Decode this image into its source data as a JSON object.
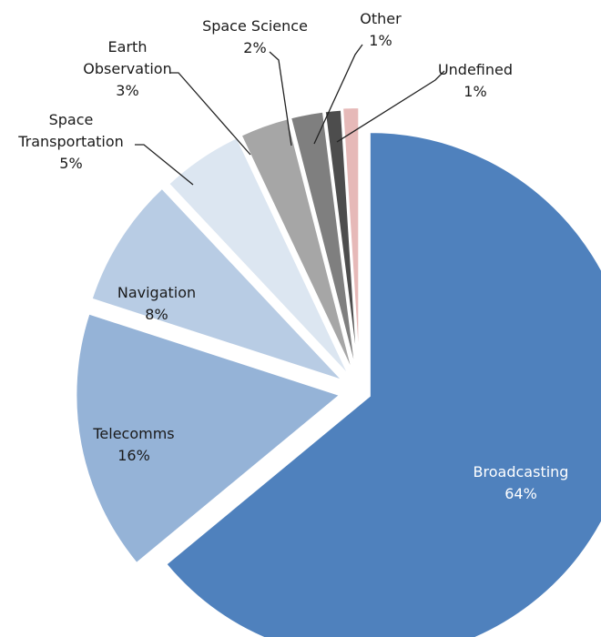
{
  "chart_data": {
    "type": "pie",
    "title": "",
    "start_angle_deg": 0,
    "direction": "clockwise",
    "slices": [
      {
        "category": "Broadcasting",
        "value": 64,
        "label": "64%",
        "color": "#4f81bd",
        "label_color": "#ffffff"
      },
      {
        "category": "Telecomms",
        "value": 16,
        "label": "16%",
        "color": "#95b3d7",
        "label_color": "#1a1a1a"
      },
      {
        "category": "Navigation",
        "value": 8,
        "label": "8%",
        "color": "#b8cce4",
        "label_color": "#1a1a1a"
      },
      {
        "category": "Space Transportation",
        "value": 5,
        "label": "5%",
        "color": "#dce6f1",
        "label_color": "#1a1a1a"
      },
      {
        "category": "Earth Observation",
        "value": 3,
        "label": "3%",
        "color": "#a6a6a6",
        "label_color": "#1a1a1a"
      },
      {
        "category": "Space Science",
        "value": 2,
        "label": "2%",
        "color": "#7f7f7f",
        "label_color": "#1a1a1a"
      },
      {
        "category": "Other",
        "value": 1,
        "label": "1%",
        "color": "#4d4d4d",
        "label_color": "#1a1a1a"
      },
      {
        "category": "Undefined",
        "value": 1,
        "label": "1%",
        "color": "#e6b9b8",
        "label_color": "#1a1a1a"
      }
    ]
  }
}
